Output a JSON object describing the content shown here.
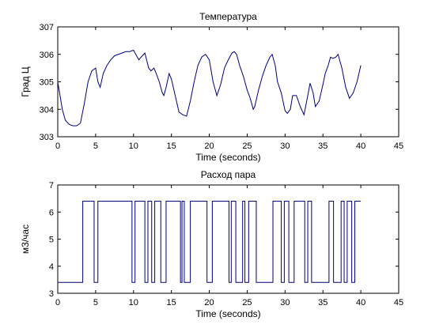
{
  "chart_data": [
    {
      "type": "line",
      "title": "Температура",
      "xlabel": "Time (seconds)",
      "ylabel": "Град Ц",
      "xlim": [
        0,
        45
      ],
      "ylim": [
        303,
        307
      ],
      "xticks": [
        0,
        5,
        10,
        15,
        20,
        25,
        30,
        35,
        40,
        45
      ],
      "yticks": [
        303,
        304,
        305,
        306,
        307
      ],
      "grid": false,
      "color": "#00007f",
      "series": [
        {
          "x": [
            0,
            0.3,
            0.6,
            1,
            1.5,
            2,
            2.5,
            3,
            3.5,
            4,
            4.5,
            5,
            5.3,
            5.6,
            6,
            6.5,
            7,
            7.5,
            8,
            8.5,
            9,
            9.5,
            10,
            10.3,
            10.7,
            11,
            11.5,
            12,
            12.3,
            12.7,
            13,
            13.4,
            13.8,
            14,
            14.3,
            14.7,
            15,
            15.5,
            16,
            16.5,
            17,
            17.5,
            18,
            18.5,
            19,
            19.5,
            20,
            20.5,
            21,
            21.5,
            22,
            22.5,
            23,
            23.3,
            23.6,
            24,
            24.5,
            25,
            25.4,
            25.8,
            26,
            26.5,
            27,
            27.5,
            28,
            28.3,
            28.7,
            29,
            29.5,
            30,
            30.3,
            30.7,
            31,
            31.5,
            32,
            32.5,
            33,
            33.3,
            33.7,
            34,
            34.5,
            35,
            35.3,
            35.7,
            36,
            36.3,
            36.7,
            37,
            37.5,
            38,
            38.5,
            39,
            39.5,
            40
          ],
          "y": [
            305.0,
            304.5,
            304.0,
            303.6,
            303.45,
            303.4,
            303.4,
            303.5,
            304.2,
            305.0,
            305.4,
            305.5,
            305.0,
            304.8,
            305.3,
            305.6,
            305.8,
            305.95,
            306.0,
            306.05,
            306.1,
            306.1,
            306.15,
            306.0,
            305.8,
            305.9,
            306.05,
            305.5,
            305.4,
            305.5,
            305.3,
            305.0,
            304.6,
            304.5,
            304.8,
            305.3,
            305.1,
            304.5,
            303.9,
            303.8,
            303.75,
            304.3,
            305.0,
            305.6,
            305.9,
            306.0,
            305.8,
            305.0,
            304.5,
            304.9,
            305.5,
            305.8,
            306.05,
            306.1,
            306.0,
            305.6,
            305.2,
            304.7,
            304.4,
            304.0,
            304.1,
            304.7,
            305.2,
            305.6,
            305.9,
            306.0,
            305.6,
            305.0,
            304.6,
            303.95,
            303.85,
            304.0,
            304.5,
            304.5,
            304.1,
            303.8,
            304.5,
            304.95,
            304.6,
            304.1,
            304.3,
            304.9,
            305.3,
            305.6,
            305.9,
            305.85,
            305.9,
            306.0,
            305.5,
            304.8,
            304.4,
            304.6,
            305.0,
            305.6
          ]
        }
      ]
    },
    {
      "type": "line",
      "title": "Расход пара",
      "xlabel": "Time (seconds)",
      "ylabel": "м3/час",
      "xlim": [
        0,
        45
      ],
      "ylim": [
        3,
        7
      ],
      "xticks": [
        0,
        5,
        10,
        15,
        20,
        25,
        30,
        35,
        40,
        45
      ],
      "yticks": [
        3,
        4,
        5,
        6,
        7
      ],
      "grid": false,
      "color": "#00007f",
      "low": 3.4,
      "high": 6.4,
      "series": [
        {
          "x": [
            0,
            3.3,
            3.3,
            4.8,
            4.8,
            5.3,
            5.3,
            9.8,
            9.8,
            10.2,
            10.2,
            11.5,
            11.5,
            11.9,
            11.9,
            12.4,
            12.4,
            12.8,
            12.8,
            13.6,
            13.6,
            14.3,
            14.3,
            16.2,
            16.2,
            16.4,
            16.4,
            16.7,
            16.7,
            17.5,
            17.5,
            19.7,
            19.7,
            20.4,
            20.4,
            22.6,
            22.6,
            22.9,
            22.9,
            23.5,
            23.5,
            24.4,
            24.4,
            24.7,
            24.7,
            25.2,
            25.2,
            26.2,
            26.2,
            28.4,
            28.4,
            29.5,
            29.5,
            29.9,
            29.9,
            30.5,
            30.5,
            31.2,
            31.2,
            32.6,
            32.6,
            33.0,
            33.0,
            33.5,
            33.5,
            35.8,
            35.8,
            36.4,
            36.4,
            37.4,
            37.4,
            37.8,
            37.8,
            38.2,
            38.2,
            38.8,
            38.8,
            39.2,
            39.2,
            40
          ],
          "y": [
            3.4,
            3.4,
            6.4,
            6.4,
            3.4,
            3.4,
            6.4,
            6.4,
            3.4,
            3.4,
            6.4,
            6.4,
            3.4,
            3.4,
            6.4,
            6.4,
            3.4,
            3.4,
            6.4,
            6.4,
            3.4,
            3.4,
            6.4,
            6.4,
            3.4,
            3.4,
            6.4,
            6.4,
            3.4,
            3.4,
            6.4,
            6.4,
            3.4,
            3.4,
            6.4,
            6.4,
            3.4,
            3.4,
            6.4,
            6.4,
            3.4,
            3.4,
            6.4,
            6.4,
            3.4,
            3.4,
            6.4,
            6.4,
            3.4,
            3.4,
            6.4,
            6.4,
            3.4,
            3.4,
            6.4,
            6.4,
            3.4,
            3.4,
            6.4,
            6.4,
            3.4,
            3.4,
            6.4,
            6.4,
            3.4,
            3.4,
            6.4,
            6.4,
            3.4,
            3.4,
            6.4,
            6.4,
            3.4,
            3.4,
            6.4,
            6.4,
            3.4,
            3.4,
            6.4,
            6.4
          ]
        }
      ]
    }
  ]
}
